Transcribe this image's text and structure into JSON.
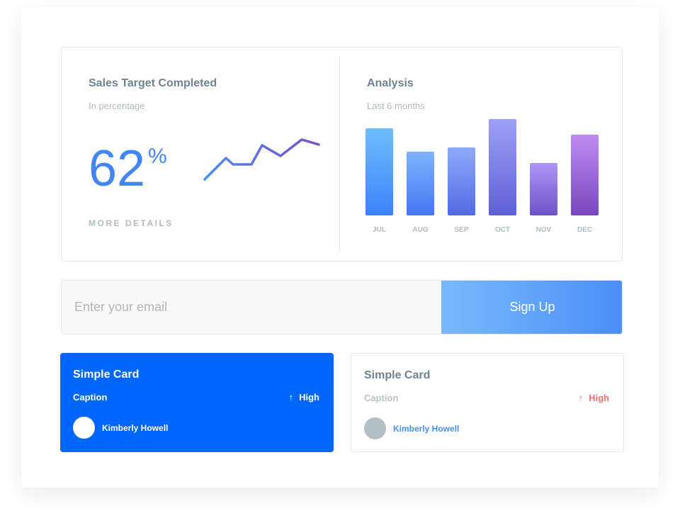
{
  "sales": {
    "title": "Sales Target Completed",
    "subtitle": "In percentage",
    "value": "62",
    "unit": "%",
    "link": "MORE DETAILS"
  },
  "analysis": {
    "title": "Analysis",
    "subtitle": "Last 6 months"
  },
  "chart_data": [
    {
      "type": "line",
      "name": "sparkline",
      "values": [
        0,
        30,
        21,
        21,
        48,
        33,
        56,
        49
      ],
      "colors": [
        "#4a8ef8",
        "#7a4fc8"
      ]
    },
    {
      "type": "bar",
      "categories": [
        "JUL",
        "AUG",
        "SEP",
        "OCT",
        "NOV",
        "DEC"
      ],
      "values": [
        123,
        90,
        96,
        136,
        74,
        114
      ],
      "colors": [
        "#3a82fc",
        "#7847be"
      ]
    }
  ],
  "signup": {
    "placeholder": "Enter your email",
    "button": "Sign Up"
  },
  "cards": [
    {
      "title": "Simple Card",
      "caption": "Caption",
      "trend_icon": "arrow-up-icon",
      "trend": "High",
      "user": "Kimberly Howell"
    },
    {
      "title": "Simple Card",
      "caption": "Caption",
      "trend_icon": "arrow-up-icon",
      "trend": "High",
      "user": "Kimberly Howell"
    }
  ],
  "colors": {
    "primary": "#0067fe",
    "accent": "#4285f4",
    "danger": "#f36f6f"
  }
}
